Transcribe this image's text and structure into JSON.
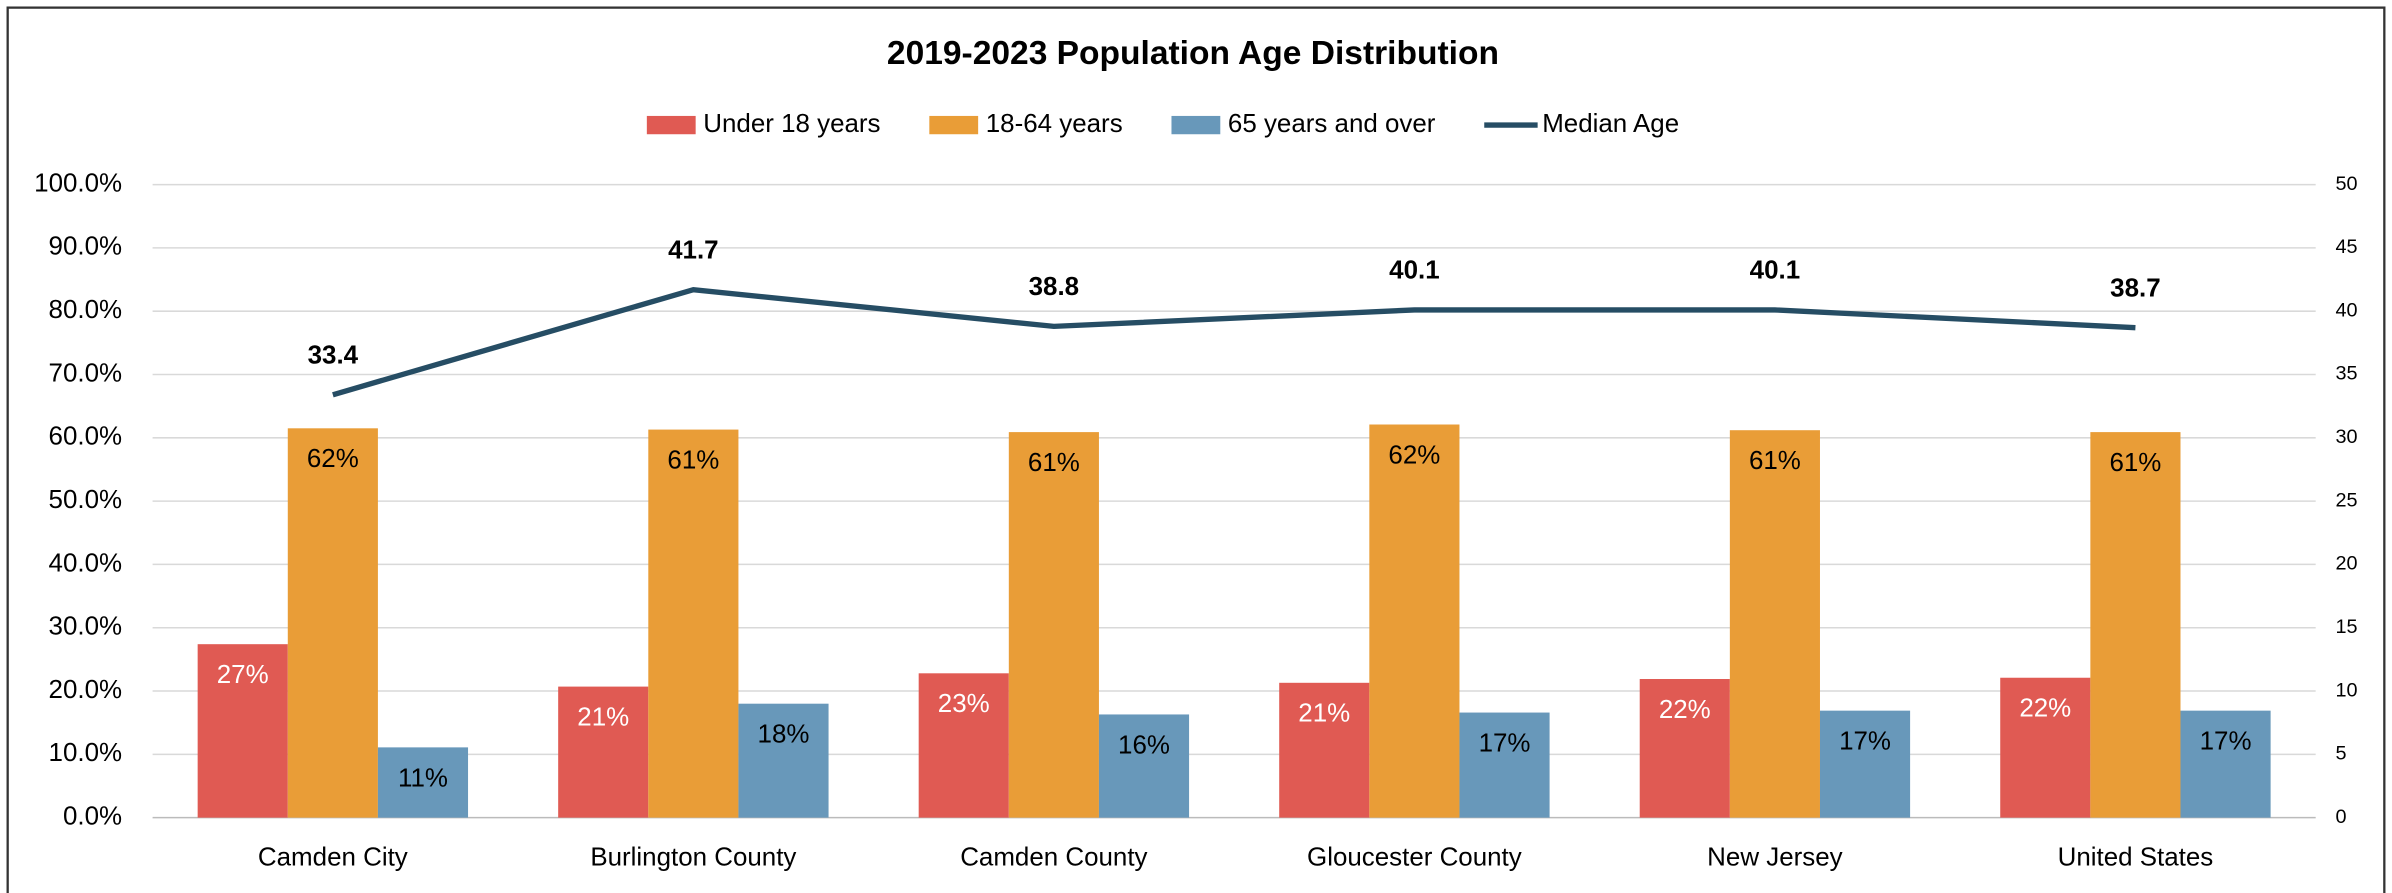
{
  "chart_data": {
    "type": "bar",
    "title": "2019-2023 Population Age Distribution",
    "categories": [
      "Camden City",
      "Burlington County",
      "Camden County",
      "Gloucester County",
      "New Jersey",
      "United States"
    ],
    "series": [
      {
        "name": "Under 18 years",
        "color": "#e05a53",
        "values": [
          27.4,
          20.7,
          22.8,
          21.3,
          21.9,
          22.1
        ],
        "value_labels": [
          "27%",
          "21%",
          "23%",
          "21%",
          "22%",
          "22%"
        ],
        "label_color": "#ffffff"
      },
      {
        "name": "18-64 years",
        "color": "#e99d37",
        "values": [
          61.5,
          61.3,
          60.9,
          62.1,
          61.2,
          60.9
        ],
        "value_labels": [
          "62%",
          "61%",
          "61%",
          "62%",
          "61%",
          "61%"
        ],
        "label_color": "#000000"
      },
      {
        "name": "65 years and over",
        "color": "#6898ba",
        "values": [
          11.1,
          18.0,
          16.3,
          16.6,
          16.9,
          16.9
        ],
        "value_labels": [
          "11%",
          "18%",
          "16%",
          "17%",
          "17%",
          "17%"
        ],
        "label_color": "#000000"
      },
      {
        "name": "Median Age",
        "type": "line",
        "axis": "y2",
        "color": "#264d64",
        "values": [
          33.4,
          41.7,
          38.8,
          40.1,
          40.1,
          38.7
        ]
      }
    ],
    "ylim": [
      0,
      100
    ],
    "yticks": [
      {
        "value": 0,
        "label": "0.0%"
      },
      {
        "value": 10,
        "label": "10.0%"
      },
      {
        "value": 20,
        "label": "20.0%"
      },
      {
        "value": 30,
        "label": "30.0%"
      },
      {
        "value": 40,
        "label": "40.0%"
      },
      {
        "value": 50,
        "label": "50.0%"
      },
      {
        "value": 60,
        "label": "60.0%"
      },
      {
        "value": 70,
        "label": "70.0%"
      },
      {
        "value": 80,
        "label": "80.0%"
      },
      {
        "value": 90,
        "label": "90.0%"
      },
      {
        "value": 100,
        "label": "100.0%"
      }
    ],
    "y2lim": [
      0,
      50
    ],
    "y2ticks": [
      0,
      5,
      10,
      15,
      20,
      25,
      30,
      35,
      40,
      45,
      50
    ],
    "grid": true,
    "legend": "top"
  }
}
